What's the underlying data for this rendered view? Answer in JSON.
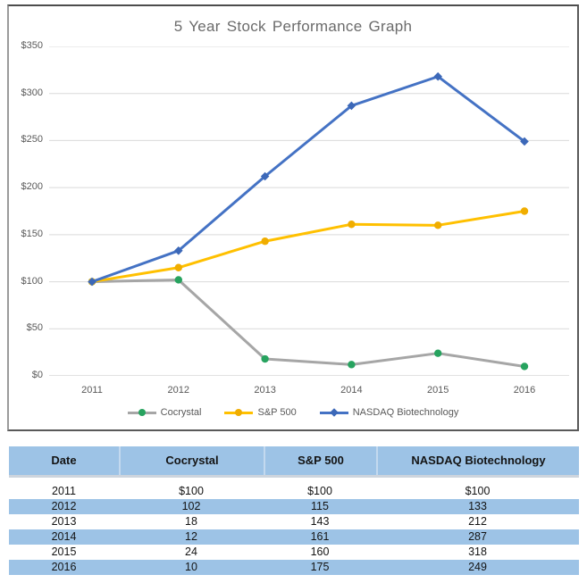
{
  "chart_data": {
    "type": "line",
    "title": "5 Year Stock Performance Graph",
    "categories": [
      "2011",
      "2012",
      "2013",
      "2014",
      "2015",
      "2016"
    ],
    "series": [
      {
        "name": "Cocrystal",
        "values": [
          100,
          102,
          18,
          12,
          24,
          10
        ],
        "line_color": "#a6a6a6",
        "marker_color": "#27a35f",
        "marker": "circle"
      },
      {
        "name": "S&P 500",
        "values": [
          100,
          115,
          143,
          161,
          160,
          175
        ],
        "line_color": "#ffc000",
        "marker_color": "#f0ad00",
        "marker": "circle"
      },
      {
        "name": "NASDAQ Biotechnology",
        "values": [
          100,
          133,
          212,
          287,
          318,
          249
        ],
        "line_color": "#4472c4",
        "marker_color": "#3c68b8",
        "marker": "diamond"
      }
    ],
    "xlabel": "",
    "ylabel": "",
    "ylim": [
      0,
      350
    ],
    "y_ticks": [
      {
        "value": 350,
        "label": "$350"
      },
      {
        "value": 300,
        "label": "$300"
      },
      {
        "value": 250,
        "label": "$250"
      },
      {
        "value": 200,
        "label": "$200"
      },
      {
        "value": 150,
        "label": "$150"
      },
      {
        "value": 100,
        "label": "$100"
      },
      {
        "value": 50,
        "label": "$50"
      },
      {
        "value": 0,
        "label": "$0"
      }
    ],
    "grid": true,
    "gridline_color": "#d9d9d9",
    "legend_position": "bottom"
  },
  "table": {
    "headers": [
      "Date",
      "Cocrystal",
      "S&P 500",
      "NASDAQ Biotechnology"
    ],
    "rows": [
      [
        "2011",
        "$100",
        "$100",
        "$100"
      ],
      [
        "2012",
        "102",
        "115",
        "133"
      ],
      [
        "2013",
        "18",
        "143",
        "212"
      ],
      [
        "2014",
        "12",
        "161",
        "287"
      ],
      [
        "2015",
        "24",
        "160",
        "318"
      ],
      [
        "2016",
        "10",
        "175",
        "249"
      ]
    ],
    "header_bg": "#9dc3e6",
    "row_alt_bg": "#9dc3e6",
    "row_bg": "#ffffff"
  }
}
